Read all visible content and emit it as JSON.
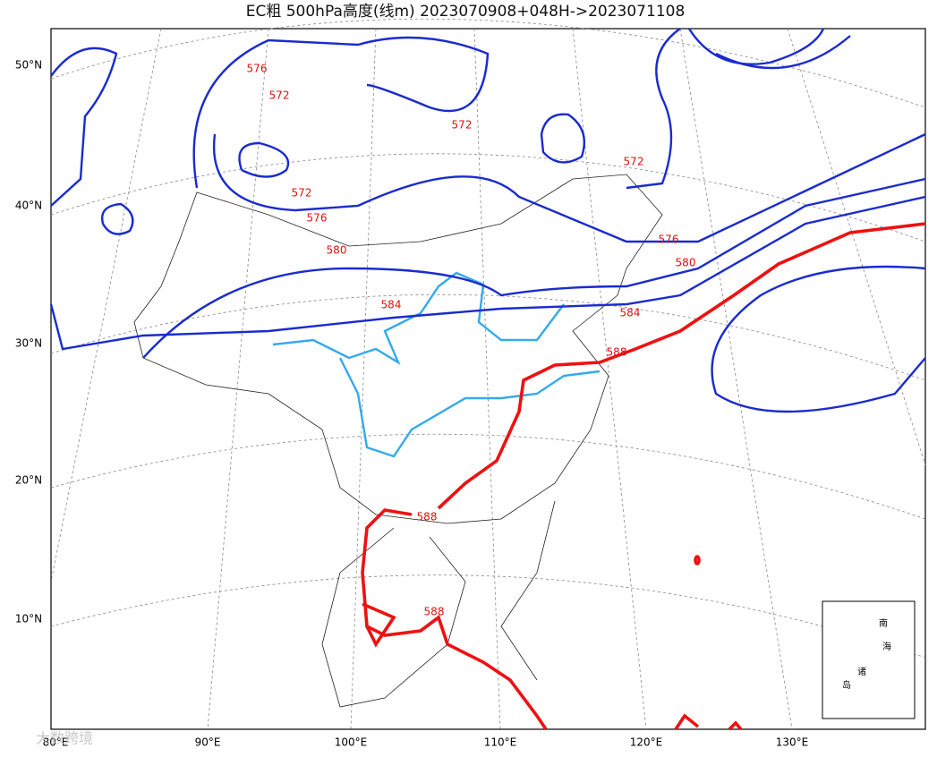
{
  "title": "EC粗 500hPa高度(线m) 2023070908+048H->2023071108",
  "lat_labels": [
    "50°N",
    "40°N",
    "30°N",
    "20°N",
    "10°N"
  ],
  "lon_labels": [
    "80°E",
    "90°E",
    "100°E",
    "110°E",
    "120°E",
    "130°E"
  ],
  "contour_labels": [
    "576",
    "572",
    "572",
    "572",
    "572",
    "576",
    "580",
    "584",
    "576",
    "580",
    "584",
    "588",
    "588",
    "588"
  ],
  "inset_labels": [
    "南",
    "海",
    "诸",
    "岛"
  ],
  "watermark": "大数跨境"
}
